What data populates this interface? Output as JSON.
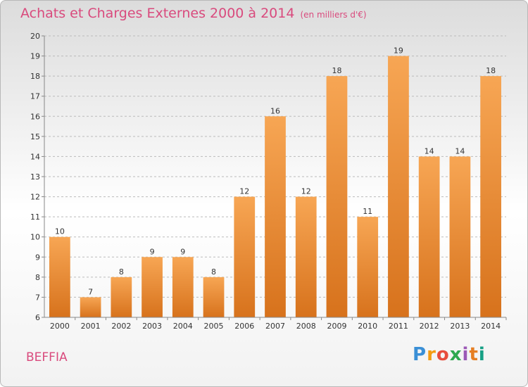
{
  "header": {
    "title": "Achats et Charges Externes 2000 à 2014",
    "unit": "(en milliers d'€)"
  },
  "footer": {
    "city": "BEFFIA",
    "logo": "Proxiti"
  },
  "chart_data": {
    "type": "bar",
    "title": "Achats et Charges Externes 2000 à 2014",
    "subtitle": "(en milliers d'€)",
    "categories": [
      "2000",
      "2001",
      "2002",
      "2003",
      "2004",
      "2005",
      "2006",
      "2007",
      "2008",
      "2009",
      "2010",
      "2011",
      "2012",
      "2013",
      "2014"
    ],
    "values": [
      10,
      7,
      8,
      9,
      9,
      8,
      12,
      16,
      12,
      18,
      11,
      19,
      14,
      14,
      18
    ],
    "ylim": [
      6,
      20
    ],
    "yticks": [
      6,
      7,
      8,
      9,
      10,
      11,
      12,
      13,
      14,
      15,
      16,
      17,
      18,
      19,
      20
    ],
    "grid": true,
    "colors": {
      "bar_light": "#f7a654",
      "bar_dark": "#d7721c",
      "grid": "#bbbbbb",
      "axis": "#888888"
    },
    "data_labels": true
  }
}
